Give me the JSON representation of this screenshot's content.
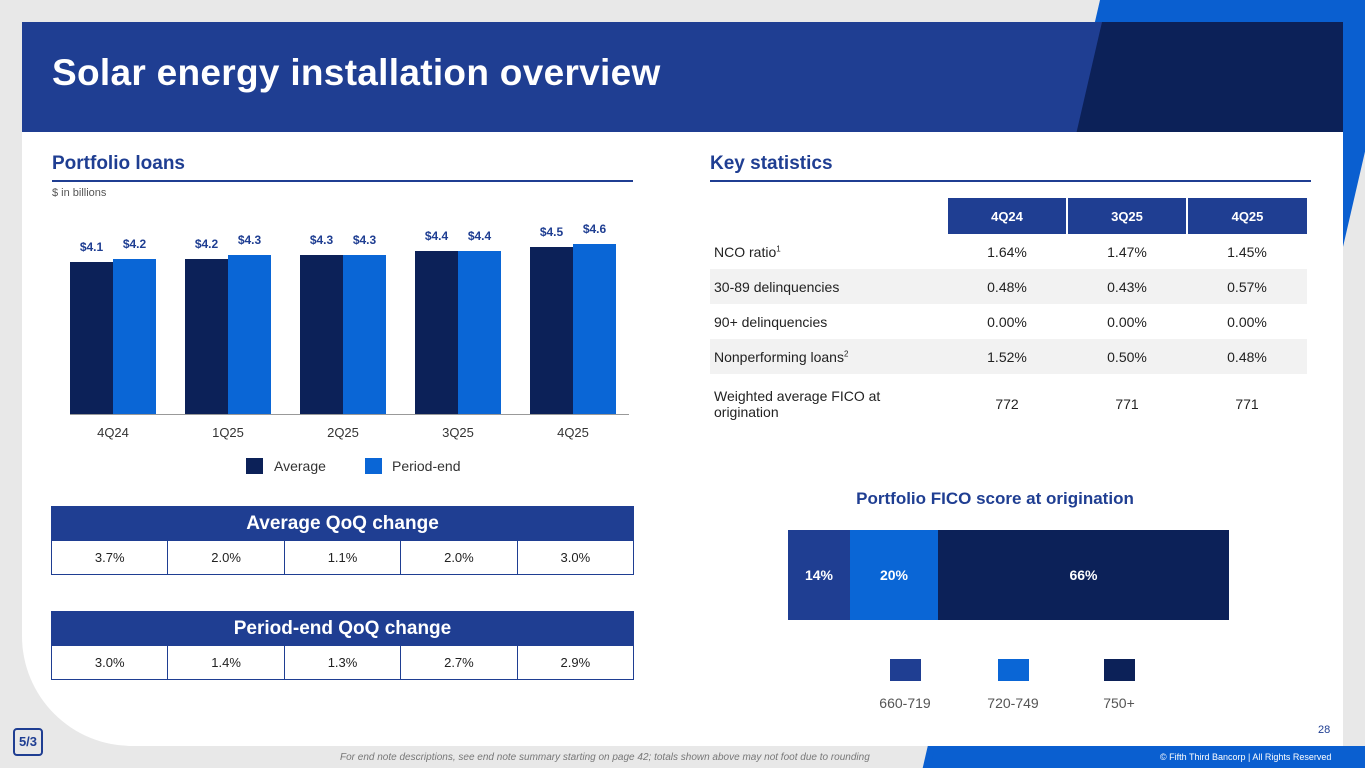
{
  "title": "Solar energy installation overview",
  "portfolio": {
    "heading": "Portfolio loans",
    "units": "$ in billions"
  },
  "chart_data": {
    "type": "bar",
    "categories": [
      "4Q24",
      "1Q25",
      "2Q25",
      "3Q25",
      "4Q25"
    ],
    "series": [
      {
        "name": "Average",
        "values": [
          4.1,
          4.2,
          4.3,
          4.4,
          4.5
        ],
        "labels": [
          "$4.1",
          "$4.2",
          "$4.3",
          "$4.4",
          "$4.5"
        ],
        "color": "#0c2158"
      },
      {
        "name": "Period-end",
        "values": [
          4.2,
          4.3,
          4.3,
          4.4,
          4.6
        ],
        "labels": [
          "$4.2",
          "$4.3",
          "$4.3",
          "$4.4",
          "$4.6"
        ],
        "color": "#0a66d6"
      }
    ],
    "ylabel": "$ in billions",
    "legend": "bottom"
  },
  "avg_qoq": {
    "heading": "Average QoQ change",
    "values": [
      "3.7%",
      "2.0%",
      "1.1%",
      "2.0%",
      "3.0%"
    ]
  },
  "pe_qoq": {
    "heading": "Period-end QoQ change",
    "values": [
      "3.0%",
      "1.4%",
      "1.3%",
      "2.7%",
      "2.9%"
    ]
  },
  "key_stats": {
    "heading": "Key statistics",
    "columns": [
      "4Q24",
      "3Q25",
      "4Q25"
    ],
    "rows": [
      {
        "label": "NCO ratio",
        "sup": "1",
        "values": [
          "1.64%",
          "1.47%",
          "1.45%"
        ]
      },
      {
        "label": "30-89 delinquencies",
        "sup": "",
        "values": [
          "0.48%",
          "0.43%",
          "0.57%"
        ]
      },
      {
        "label": "90+ delinquencies",
        "sup": "",
        "values": [
          "0.00%",
          "0.00%",
          "0.00%"
        ]
      },
      {
        "label": "Nonperforming loans",
        "sup": "2",
        "values": [
          "1.52%",
          "0.50%",
          "0.48%"
        ]
      },
      {
        "label": "Weighted average FICO at origination",
        "sup": "",
        "values": [
          "772",
          "771",
          "771"
        ]
      }
    ]
  },
  "fico": {
    "title": "Portfolio FICO score at origination",
    "segments": [
      {
        "label": "660-719",
        "value": 14,
        "text": "14%",
        "color": "#1f3e92"
      },
      {
        "label": "720-749",
        "value": 20,
        "text": "20%",
        "color": "#0a66d6"
      },
      {
        "label": "750+",
        "value": 66,
        "text": "66%",
        "color": "#0c2158"
      }
    ]
  },
  "footer": {
    "page": "28",
    "note": "For end note descriptions, see end note summary starting on page 42; totals shown above may not foot due to rounding",
    "copyright": "© Fifth Third Bancorp | All Rights Reserved",
    "logo_text": "5/3"
  }
}
